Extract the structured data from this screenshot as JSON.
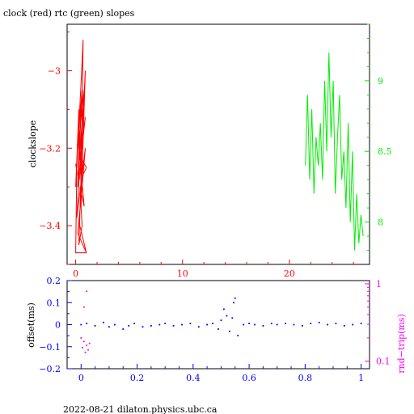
{
  "title": "clock (red) rtc (green) slopes",
  "footer": "2022-08-21  dilaton.physics.ubc.ca",
  "colors": {
    "red": "#ff0000",
    "green": "#00ee00",
    "blue": "#0000ff",
    "magenta": "#ff00ff",
    "axis": "#000000"
  },
  "chart_data": [
    {
      "type": "line",
      "title": "clock (red) rtc (green) slopes",
      "xlim": [
        -0.8,
        27.5
      ],
      "x_ticks": [
        0,
        10,
        20
      ],
      "x_tick_labels": [
        "0",
        "10",
        "20"
      ],
      "ylabel": "clockslope",
      "ylim": [
        -3.5,
        -2.88
      ],
      "y_ticks": [
        -3.4,
        -3.2,
        -3
      ],
      "y_tick_labels": [
        "−3.4",
        "−3.2",
        "−3"
      ],
      "y2lim": [
        7.7,
        9.4
      ],
      "y2_ticks": [
        8,
        8.5,
        9
      ],
      "y2_tick_labels": [
        "8",
        "8.5",
        "9"
      ],
      "series": [
        {
          "name": "clock",
          "axis": "left",
          "color": "#ff0000",
          "x": [
            0.0,
            0.3,
            0.1,
            0.6,
            0.2,
            0.8,
            0.4,
            0.9,
            0.5,
            0.7,
            0.3,
            0.6,
            0.2,
            0.9,
            0.4,
            1.0,
            0.5,
            0.3,
            0.6,
            0.4,
            0.8,
            0.3,
            0.5,
            0.2,
            0.7,
            0.1,
            0.9,
            0.6,
            0.2,
            1.0,
            0.3,
            1.0,
            0.0,
            0.1,
            0.0
          ],
          "y": [
            -3.3,
            -3.1,
            -3.25,
            -2.98,
            -3.2,
            -3.05,
            -3.28,
            -3.0,
            -3.35,
            -2.92,
            -3.15,
            -3.05,
            -3.3,
            -3.12,
            -3.22,
            -3.25,
            -3.28,
            -3.45,
            -3.4,
            -3.3,
            -3.35,
            -3.2,
            -3.1,
            -3.27,
            -3.1,
            -3.38,
            -3.2,
            -3.3,
            -3.42,
            -3.47,
            -3.39,
            -3.47,
            -3.47,
            -3.26,
            -3.24
          ]
        },
        {
          "name": "rtc",
          "axis": "right",
          "color": "#00ee00",
          "x": [
            21.5,
            21.7,
            21.9,
            22.1,
            22.3,
            22.5,
            22.7,
            22.9,
            23.1,
            23.3,
            23.5,
            23.7,
            23.9,
            24.1,
            24.3,
            24.5,
            24.7,
            24.9,
            25.1,
            25.3,
            25.5,
            25.7,
            25.9,
            26.1,
            26.3,
            26.5,
            26.7,
            26.9
          ],
          "y": [
            8.4,
            8.9,
            8.3,
            8.8,
            8.2,
            8.6,
            8.4,
            8.7,
            8.3,
            9.0,
            8.5,
            9.2,
            8.6,
            9.0,
            8.2,
            8.6,
            8.9,
            8.3,
            8.5,
            8.1,
            8.7,
            8.0,
            8.5,
            7.8,
            8.2,
            7.85,
            8.05,
            7.9
          ]
        }
      ]
    },
    {
      "type": "scatter",
      "xlim": [
        -0.05,
        1.03
      ],
      "x_ticks": [
        0,
        0.2,
        0.4,
        0.6,
        0.8,
        1
      ],
      "x_tick_labels": [
        "0",
        "0.2",
        "0.4",
        "0.6",
        "0.8",
        "1"
      ],
      "ylabel": "offset(ms)",
      "ylim": [
        -0.2,
        0.2
      ],
      "y_ticks": [
        -0.2,
        -0.1,
        0,
        0.1,
        0.2
      ],
      "y_tick_labels": [
        "−0.2",
        "−0.1",
        "0",
        "0.1",
        "0.2"
      ],
      "y2label": "rnd−trip(ms)",
      "y2lim": [
        0.08,
        1.1
      ],
      "y2_scale": "log",
      "y2_ticks": [
        0.1,
        1
      ],
      "y2_tick_labels": [
        "0.1",
        "1"
      ],
      "series": [
        {
          "name": "offset",
          "axis": "left",
          "color": "#0000ff",
          "x": [
            0.0,
            0.02,
            0.05,
            0.08,
            0.1,
            0.12,
            0.15,
            0.17,
            0.19,
            0.22,
            0.25,
            0.28,
            0.3,
            0.33,
            0.36,
            0.39,
            0.42,
            0.45,
            0.47,
            0.49,
            0.5,
            0.51,
            0.52,
            0.53,
            0.54,
            0.545,
            0.55,
            0.56,
            0.58,
            0.6,
            0.62,
            0.65,
            0.68,
            0.7,
            0.73,
            0.76,
            0.79,
            0.82,
            0.85,
            0.88,
            0.91,
            0.94,
            0.97,
            1.0
          ],
          "y": [
            0.0,
            0.005,
            -0.005,
            0.01,
            -0.01,
            0.0,
            -0.02,
            -0.005,
            0.005,
            -0.01,
            -0.005,
            0.0,
            0.005,
            -0.005,
            0.0,
            0.005,
            -0.01,
            0.0,
            0.005,
            -0.02,
            0.02,
            0.07,
            0.04,
            -0.03,
            0.03,
            0.1,
            0.12,
            -0.05,
            0.0,
            0.005,
            0.0,
            -0.005,
            0.005,
            0.0,
            0.005,
            0.0,
            -0.005,
            0.005,
            0.01,
            0.0,
            0.005,
            -0.005,
            0.0,
            0.005
          ]
        },
        {
          "name": "rnd-trip",
          "axis": "right",
          "color": "#ff00ff",
          "x": [
            0.0,
            0.005,
            0.01,
            0.015,
            0.02,
            0.025,
            0.03,
            0.01,
            0.02
          ],
          "y": [
            0.2,
            0.15,
            0.18,
            0.13,
            0.16,
            0.14,
            0.17,
            0.5,
            0.8
          ]
        }
      ]
    }
  ]
}
